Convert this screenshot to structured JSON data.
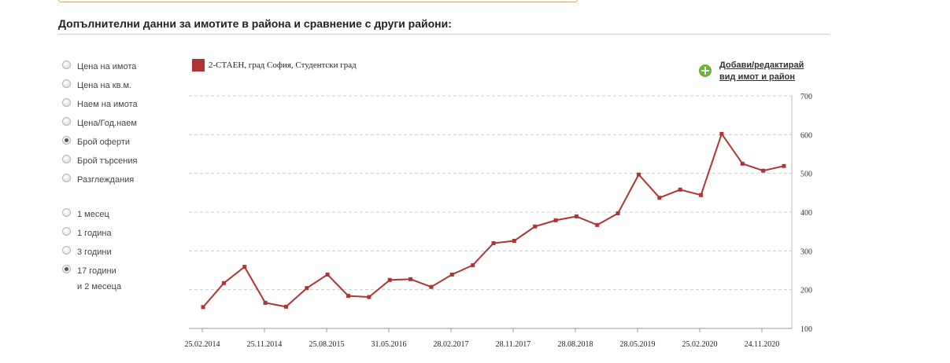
{
  "section_title": "Допълнителни данни за имотите в района и сравнение с други райони:",
  "metric_options": [
    {
      "label": "Цена на имота",
      "checked": false
    },
    {
      "label": "Цена на кв.м.",
      "checked": false
    },
    {
      "label": "Наем на имота",
      "checked": false
    },
    {
      "label": "Цена/Год.наем",
      "checked": false
    },
    {
      "label": "Брой оферти",
      "checked": true
    },
    {
      "label": "Брой търсения",
      "checked": false
    },
    {
      "label": "Разглеждания",
      "checked": false
    }
  ],
  "period_options": [
    {
      "label": "1 месец",
      "checked": false
    },
    {
      "label": "1 година",
      "checked": false
    },
    {
      "label": "3 години",
      "checked": false
    },
    {
      "label": "17 години",
      "label_line2": "и 2 месеца",
      "checked": true
    }
  ],
  "add_link": {
    "line1": "Добави/редактирай",
    "line2": "вид имот и район",
    "icon": "plus-circle-icon"
  },
  "chart_data": {
    "type": "line",
    "series": [
      {
        "name": "2-СТАЕН, град София, Студентски град",
        "color": "#b03434",
        "values": [
          155,
          217,
          259,
          166,
          156,
          204,
          239,
          184,
          181,
          225,
          227,
          207,
          239,
          263,
          320,
          326,
          363,
          379,
          389,
          367,
          397,
          497,
          437,
          458,
          444,
          602,
          525,
          507,
          519
        ]
      }
    ],
    "x_tick_labels": [
      "25.02.2014",
      "25.11.2014",
      "25.08.2015",
      "31.05.2016",
      "28.02.2017",
      "28.11.2017",
      "28.08.2018",
      "28.05.2019",
      "25.02.2020",
      "24.11.2020"
    ],
    "y_ticks": [
      100,
      200,
      300,
      400,
      500,
      600,
      700
    ],
    "ylim": [
      100,
      700
    ],
    "y_axis_side": "right",
    "grid": "horizontal dashed"
  }
}
